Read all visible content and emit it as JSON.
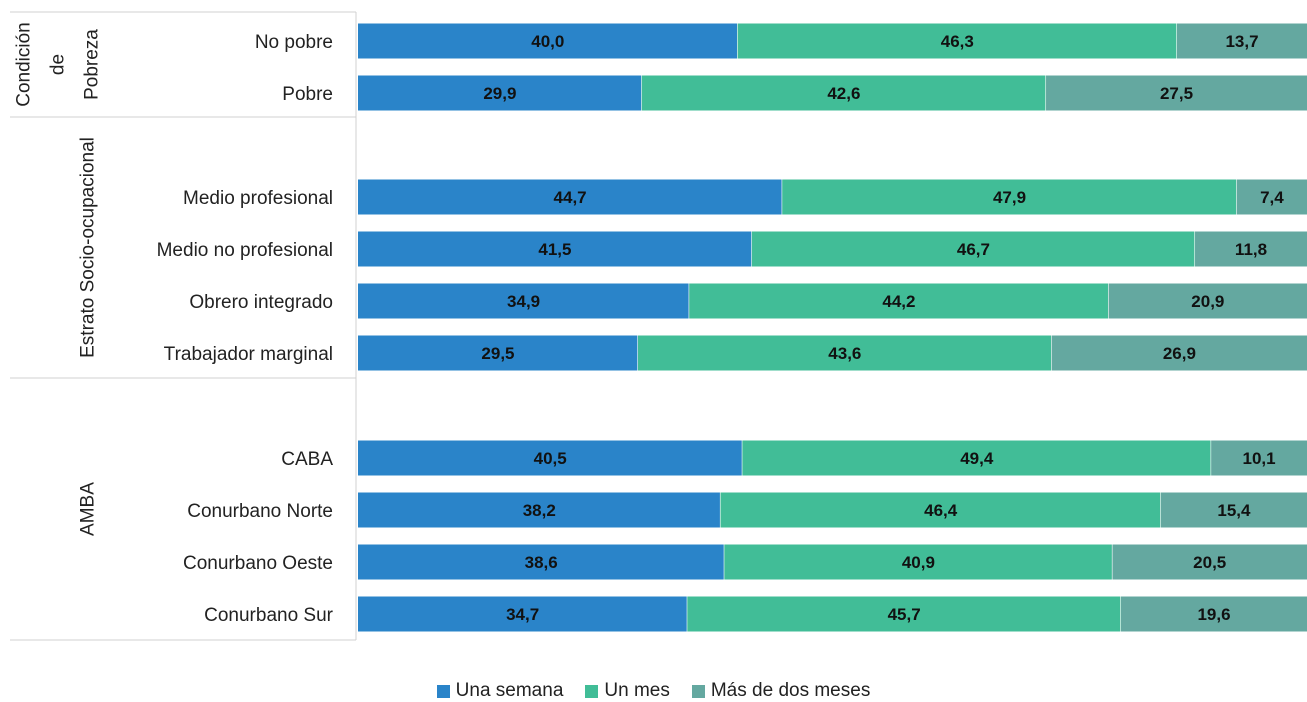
{
  "chart_data": {
    "type": "bar",
    "orientation": "horizontal",
    "stacked": "percent",
    "groups": [
      {
        "label_lines": [
          "Condición",
          "de",
          "Pobreza"
        ],
        "categories": [
          "No pobre",
          "Pobre"
        ]
      },
      {
        "label_lines": [
          "Estrato Socio-ocupacional"
        ],
        "categories": [
          "Medio profesional",
          "Medio no profesional",
          "Obrero integrado",
          "Trabajador marginal"
        ]
      },
      {
        "label_lines": [
          "AMBA"
        ],
        "categories": [
          "CABA",
          "Conurbano Norte",
          "Conurbano Oeste",
          "Conurbano Sur"
        ]
      }
    ],
    "categories": [
      "No pobre",
      "Pobre",
      "Medio profesional",
      "Medio no profesional",
      "Obrero integrado",
      "Trabajador marginal",
      "CABA",
      "Conurbano Norte",
      "Conurbano Oeste",
      "Conurbano Sur"
    ],
    "series": [
      {
        "name": "Una semana",
        "color": "#2a84c9",
        "values": [
          40.0,
          29.9,
          44.7,
          41.5,
          34.9,
          29.5,
          40.5,
          38.2,
          38.6,
          34.7
        ],
        "labels": [
          "40,0",
          "29,9",
          "44,7",
          "41,5",
          "34,9",
          "29,5",
          "40,5",
          "38,2",
          "38,6",
          "34,7"
        ]
      },
      {
        "name": "Un mes",
        "color": "#41bd97",
        "values": [
          46.3,
          42.6,
          47.9,
          46.7,
          44.2,
          43.6,
          49.4,
          46.4,
          40.9,
          45.7
        ],
        "labels": [
          "46,3",
          "42,6",
          "47,9",
          "46,7",
          "44,2",
          "43,6",
          "49,4",
          "46,4",
          "40,9",
          "45,7"
        ]
      },
      {
        "name": "Más de dos meses",
        "color": "#64a8a0",
        "values": [
          13.7,
          27.5,
          7.4,
          11.8,
          20.9,
          26.9,
          10.1,
          15.4,
          20.5,
          19.6
        ],
        "labels": [
          "13,7",
          "27,5",
          "7,4",
          "11,8",
          "20,9",
          "26,9",
          "10,1",
          "15,4",
          "20,5",
          "19,6"
        ]
      }
    ],
    "xlim": [
      0,
      100
    ],
    "legend": "bottom",
    "grid": false
  }
}
